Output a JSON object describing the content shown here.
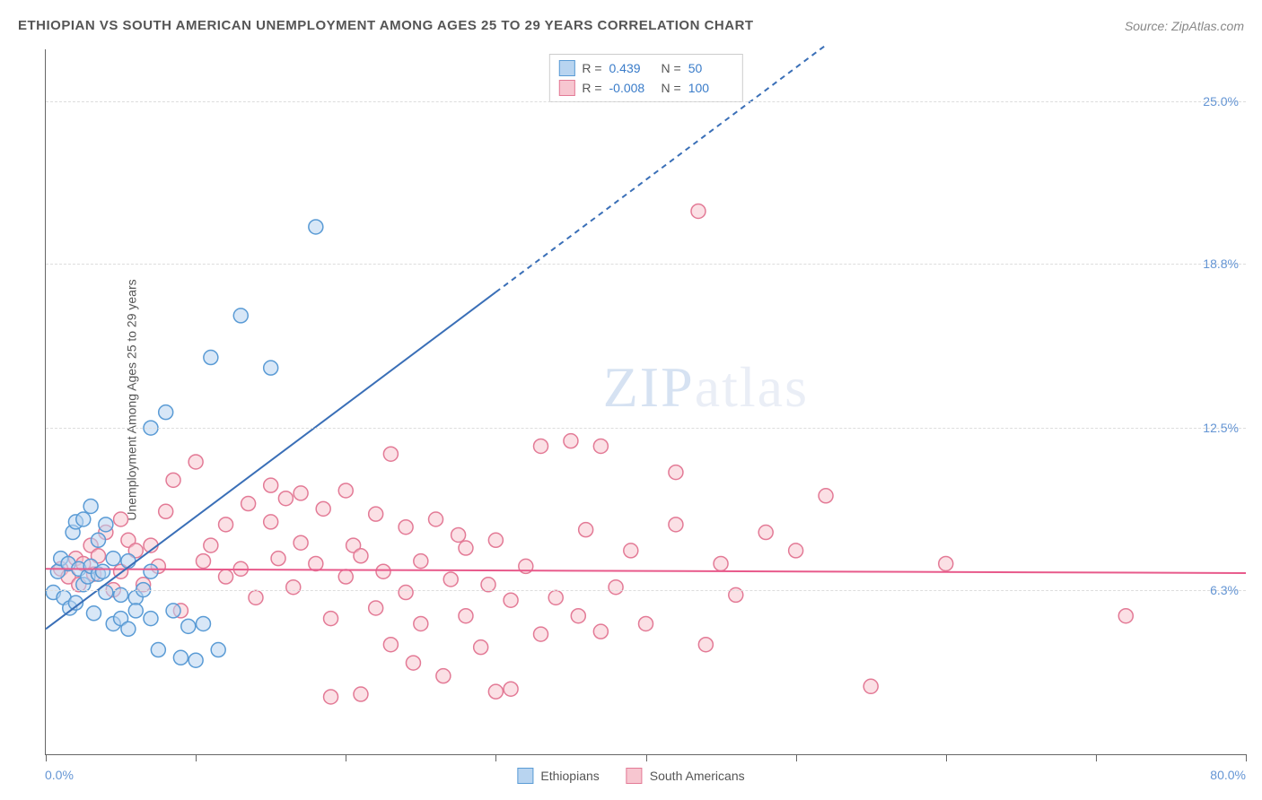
{
  "header": {
    "title": "ETHIOPIAN VS SOUTH AMERICAN UNEMPLOYMENT AMONG AGES 25 TO 29 YEARS CORRELATION CHART",
    "source": "Source: ZipAtlas.com"
  },
  "chart": {
    "type": "scatter",
    "ylabel": "Unemployment Among Ages 25 to 29 years",
    "xlim": [
      0,
      80
    ],
    "ylim": [
      0,
      27
    ],
    "xmin_label": "0.0%",
    "xmax_label": "80.0%",
    "ytick_labels": [
      "6.3%",
      "12.5%",
      "18.8%",
      "25.0%"
    ],
    "ytick_values": [
      6.3,
      12.5,
      18.8,
      25.0
    ],
    "xtick_values": [
      0,
      10,
      20,
      30,
      40,
      50,
      60,
      70,
      80
    ],
    "grid_color": "#dddddd",
    "background_color": "#ffffff",
    "marker_radius": 8,
    "marker_stroke_width": 1.5,
    "series": {
      "ethiopians": {
        "label": "Ethiopians",
        "fill": "#b8d4f0",
        "stroke": "#5a9bd5",
        "fill_opacity": 0.55,
        "trend": {
          "slope": 0.43,
          "intercept": 4.8,
          "solid_xmax": 30,
          "dashed_xmax": 52,
          "color": "#3a6fb7",
          "width": 2
        },
        "points": [
          [
            0.5,
            6.2
          ],
          [
            0.8,
            7.0
          ],
          [
            1.0,
            7.5
          ],
          [
            1.2,
            6.0
          ],
          [
            1.5,
            7.3
          ],
          [
            1.6,
            5.6
          ],
          [
            1.8,
            8.5
          ],
          [
            2.0,
            5.8
          ],
          [
            2.0,
            8.9
          ],
          [
            2.2,
            7.1
          ],
          [
            2.5,
            9.0
          ],
          [
            2.5,
            6.5
          ],
          [
            2.8,
            6.8
          ],
          [
            3.0,
            7.2
          ],
          [
            3.0,
            9.5
          ],
          [
            3.2,
            5.4
          ],
          [
            3.5,
            6.9
          ],
          [
            3.5,
            8.2
          ],
          [
            3.8,
            7.0
          ],
          [
            4.0,
            6.2
          ],
          [
            4.0,
            8.8
          ],
          [
            4.5,
            7.5
          ],
          [
            4.5,
            5.0
          ],
          [
            5.0,
            6.1
          ],
          [
            5.0,
            5.2
          ],
          [
            5.5,
            7.4
          ],
          [
            5.5,
            4.8
          ],
          [
            6.0,
            6.0
          ],
          [
            6.0,
            5.5
          ],
          [
            6.5,
            6.3
          ],
          [
            7.0,
            7.0
          ],
          [
            7.0,
            12.5
          ],
          [
            7.0,
            5.2
          ],
          [
            7.5,
            4.0
          ],
          [
            8.0,
            13.1
          ],
          [
            8.5,
            5.5
          ],
          [
            9.0,
            3.7
          ],
          [
            9.5,
            4.9
          ],
          [
            10.0,
            3.6
          ],
          [
            10.5,
            5.0
          ],
          [
            11.0,
            15.2
          ],
          [
            11.5,
            4.0
          ],
          [
            13.0,
            16.8
          ],
          [
            15.0,
            14.8
          ],
          [
            18.0,
            20.2
          ]
        ]
      },
      "south_americans": {
        "label": "South Americans",
        "fill": "#f7c6d0",
        "stroke": "#e37a96",
        "fill_opacity": 0.55,
        "trend": {
          "slope": -0.002,
          "intercept": 7.1,
          "xmax": 80,
          "color": "#e85a8b",
          "width": 2
        },
        "points": [
          [
            1.0,
            7.1
          ],
          [
            1.5,
            6.8
          ],
          [
            2.0,
            7.5
          ],
          [
            2.2,
            6.5
          ],
          [
            2.5,
            7.3
          ],
          [
            3.0,
            8.0
          ],
          [
            3.2,
            6.9
          ],
          [
            3.5,
            7.6
          ],
          [
            4.0,
            8.5
          ],
          [
            4.5,
            6.3
          ],
          [
            5.0,
            9.0
          ],
          [
            5.0,
            7.0
          ],
          [
            5.5,
            8.2
          ],
          [
            6.0,
            7.8
          ],
          [
            6.5,
            6.5
          ],
          [
            7.0,
            8.0
          ],
          [
            7.5,
            7.2
          ],
          [
            8.0,
            9.3
          ],
          [
            8.5,
            10.5
          ],
          [
            9.0,
            5.5
          ],
          [
            10.0,
            11.2
          ],
          [
            10.5,
            7.4
          ],
          [
            11.0,
            8.0
          ],
          [
            12.0,
            6.8
          ],
          [
            12.0,
            8.8
          ],
          [
            13.0,
            7.1
          ],
          [
            13.5,
            9.6
          ],
          [
            14.0,
            6.0
          ],
          [
            15.0,
            8.9
          ],
          [
            15.0,
            10.3
          ],
          [
            15.5,
            7.5
          ],
          [
            16.0,
            9.8
          ],
          [
            16.5,
            6.4
          ],
          [
            17.0,
            8.1
          ],
          [
            17.0,
            10.0
          ],
          [
            18.0,
            7.3
          ],
          [
            18.5,
            9.4
          ],
          [
            19.0,
            5.2
          ],
          [
            19.0,
            2.2
          ],
          [
            20.0,
            6.8
          ],
          [
            20.0,
            10.1
          ],
          [
            20.5,
            8.0
          ],
          [
            21.0,
            2.3
          ],
          [
            21.0,
            7.6
          ],
          [
            22.0,
            5.6
          ],
          [
            22.0,
            9.2
          ],
          [
            22.5,
            7.0
          ],
          [
            23.0,
            4.2
          ],
          [
            23.0,
            11.5
          ],
          [
            24.0,
            6.2
          ],
          [
            24.0,
            8.7
          ],
          [
            24.5,
            3.5
          ],
          [
            25.0,
            7.4
          ],
          [
            25.0,
            5.0
          ],
          [
            26.0,
            9.0
          ],
          [
            26.5,
            3.0
          ],
          [
            27.0,
            6.7
          ],
          [
            27.5,
            8.4
          ],
          [
            28.0,
            5.3
          ],
          [
            28.0,
            7.9
          ],
          [
            29.0,
            4.1
          ],
          [
            29.5,
            6.5
          ],
          [
            30.0,
            8.2
          ],
          [
            30.0,
            2.4
          ],
          [
            31.0,
            5.9
          ],
          [
            31.0,
            2.5
          ],
          [
            32.0,
            7.2
          ],
          [
            33.0,
            4.6
          ],
          [
            33.0,
            11.8
          ],
          [
            34.0,
            6.0
          ],
          [
            35.0,
            12.0
          ],
          [
            35.5,
            5.3
          ],
          [
            36.0,
            8.6
          ],
          [
            37.0,
            4.7
          ],
          [
            37.0,
            11.8
          ],
          [
            38.0,
            6.4
          ],
          [
            39.0,
            7.8
          ],
          [
            40.0,
            5.0
          ],
          [
            42.0,
            8.8
          ],
          [
            42.0,
            10.8
          ],
          [
            43.5,
            20.8
          ],
          [
            44.0,
            4.2
          ],
          [
            45.0,
            7.3
          ],
          [
            46.0,
            6.1
          ],
          [
            48.0,
            8.5
          ],
          [
            50.0,
            7.8
          ],
          [
            52.0,
            9.9
          ],
          [
            55.0,
            2.6
          ],
          [
            60.0,
            7.3
          ],
          [
            72.0,
            5.3
          ]
        ]
      }
    }
  },
  "stats": {
    "rows": [
      {
        "swatch_fill": "#b8d4f0",
        "swatch_stroke": "#5a9bd5",
        "r": "0.439",
        "n": "50"
      },
      {
        "swatch_fill": "#f7c6d0",
        "swatch_stroke": "#e37a96",
        "r": "-0.008",
        "n": "100"
      }
    ]
  },
  "watermark": {
    "zip": "ZIP",
    "atlas": "atlas"
  }
}
